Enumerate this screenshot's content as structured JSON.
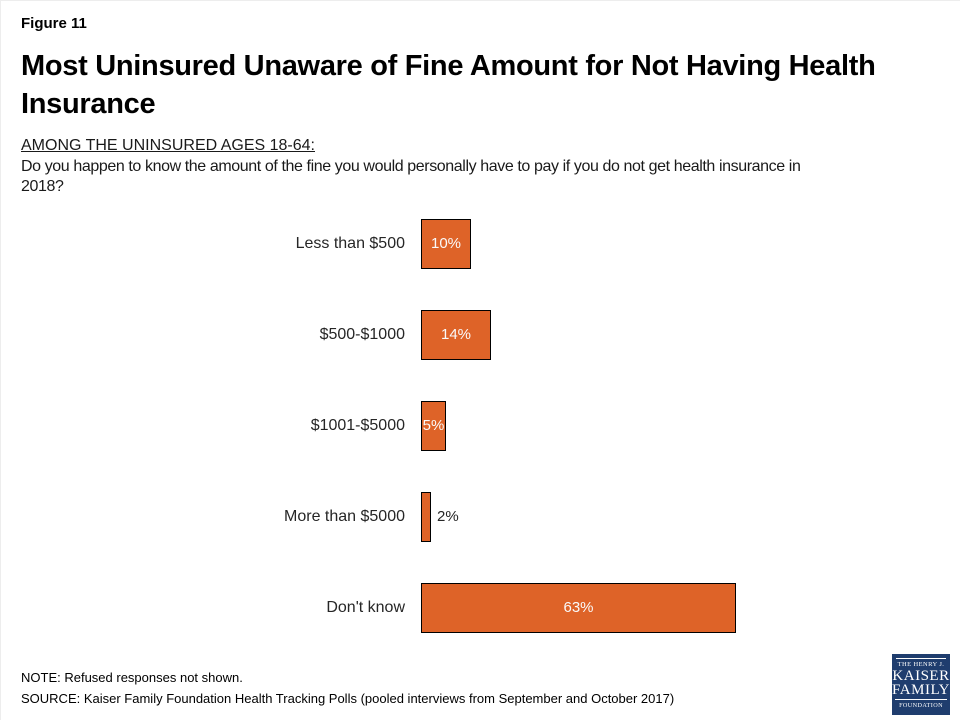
{
  "figure_label": "Figure 11",
  "title": "Most Uninsured Unaware of Fine Amount for Not Having Health Insurance",
  "subtitle": "AMONG THE UNINSURED AGES 18-64:",
  "question_lines": [
    "Do you happen to know the amount of the fine you would personally have to pay if you do not get health insurance in",
    "2018?"
  ],
  "chart_data": {
    "type": "bar",
    "orientation": "horizontal",
    "categories": [
      "Less than $500",
      "$500-$1000",
      "$1001-$5000",
      "More than $5000",
      "Don't know"
    ],
    "values": [
      10,
      14,
      5,
      2,
      63
    ],
    "value_labels": [
      "10%",
      "14%",
      "5%",
      "2%",
      "63%"
    ],
    "label_inside": [
      true,
      true,
      true,
      false,
      true
    ],
    "xlim": [
      0,
      100
    ],
    "grid": false,
    "legend": false,
    "bar_color": "#DE6328",
    "bar_border_color": "#000000",
    "value_label_color_inside": "#FAFAFA",
    "value_label_color_outside": "#262626"
  },
  "note": "NOTE: Refused responses not shown.",
  "source": "SOURCE: Kaiser Family Foundation Health Tracking Polls (pooled interviews from September and October 2017)",
  "logo": {
    "line1": "THE HENRY J.",
    "line2": "KAISER",
    "line3": "FAMILY",
    "line4": "FOUNDATION",
    "bg_color": "#1F3D6E"
  }
}
